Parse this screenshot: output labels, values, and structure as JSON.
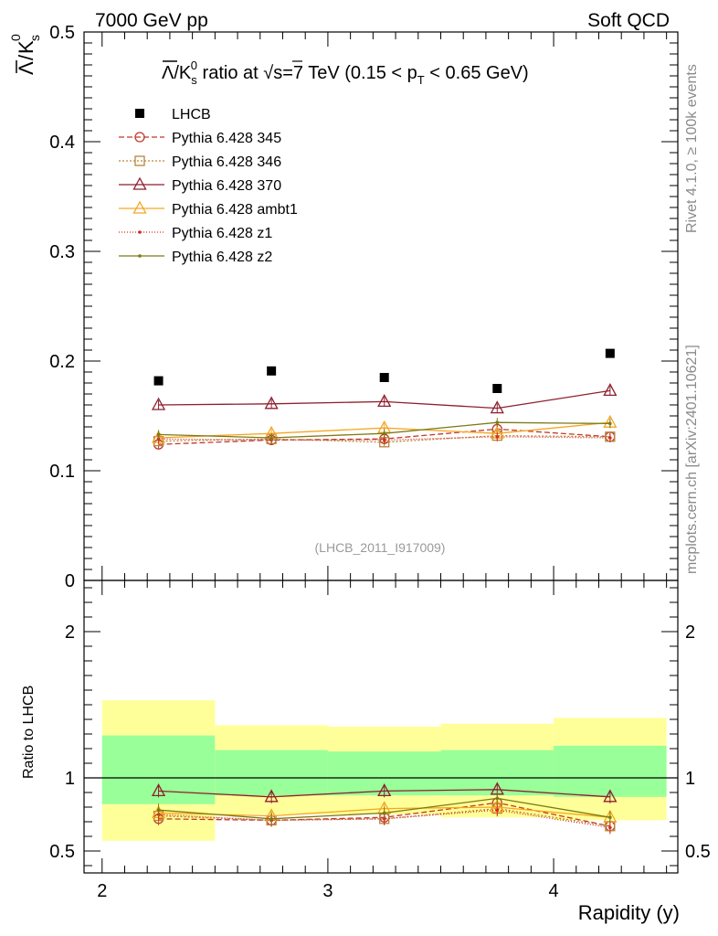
{
  "header": {
    "left": "7000 GeV pp",
    "right": "Soft QCD"
  },
  "side": {
    "rivet": "Rivet 4.1.0, ≥ 100k events",
    "mcplots": "mcplots.cern.ch [arXiv:2401.10621]"
  },
  "chart_data": {
    "type": "scatter",
    "title": {
      "lead": "/K",
      "mid": " ratio at ",
      "root": "s",
      "energy": "=7 TeV (0.15 < p",
      "sub": "T",
      "tail": " < 0.65 GeV)"
    },
    "ylabel_main": {
      "num": "Λ",
      "den": "K",
      "sub": "s",
      "sup": "0"
    },
    "ylabel_ratio": "Ratio to LHCB",
    "xlabel": "Rapidity (y)",
    "watermark": "(LHCB_2011_I917009)",
    "xlim": [
      1.92,
      4.55
    ],
    "ylim_main": [
      0.0,
      0.5
    ],
    "ylim_ratio": [
      0.35,
      2.35
    ],
    "x_ticks": [
      "2",
      "3",
      "4"
    ],
    "y_ticks_main": [
      "0",
      "0.1",
      "0.2",
      "0.3",
      "0.4",
      "0.5"
    ],
    "y_ticks_ratio": [
      "0.5",
      "1",
      "2"
    ],
    "x_bin_edges": [
      2.0,
      2.5,
      3.0,
      3.5,
      4.0,
      4.5
    ],
    "x": [
      2.25,
      2.75,
      3.25,
      3.75,
      4.25
    ],
    "data": {
      "name": "LHCB",
      "values": [
        0.182,
        0.191,
        0.185,
        0.175,
        0.207
      ],
      "color": "#000000"
    },
    "band_inner": [
      [
        0.82,
        1.29
      ],
      [
        0.88,
        1.19
      ],
      [
        0.88,
        1.18
      ],
      [
        0.88,
        1.19
      ],
      [
        0.87,
        1.22
      ]
    ],
    "band_outer": [
      [
        0.57,
        1.53
      ],
      [
        0.75,
        1.36
      ],
      [
        0.75,
        1.35
      ],
      [
        0.73,
        1.37
      ],
      [
        0.71,
        1.41
      ]
    ],
    "series": [
      {
        "name": "Pythia 6.428 345",
        "values": [
          0.124,
          0.128,
          0.129,
          0.138,
          0.131
        ],
        "ratio": [
          0.72,
          0.71,
          0.73,
          0.83,
          0.67
        ],
        "color": "#c0392b",
        "marker": "circle",
        "dash": "6,3"
      },
      {
        "name": "Pythia 6.428 346",
        "values": [
          0.127,
          0.129,
          0.126,
          0.132,
          0.131
        ],
        "ratio": [
          0.74,
          0.71,
          0.72,
          0.79,
          0.67
        ],
        "color": "#b8863b",
        "marker": "square",
        "dash": "2,2"
      },
      {
        "name": "Pythia 6.428 370",
        "values": [
          0.16,
          0.161,
          0.163,
          0.157,
          0.173
        ],
        "ratio": [
          0.91,
          0.87,
          0.91,
          0.92,
          0.87
        ],
        "color": "#8e1f2e",
        "marker": "triangle",
        "dash": ""
      },
      {
        "name": "Pythia 6.428 ambt1",
        "values": [
          0.13,
          0.134,
          0.139,
          0.134,
          0.144
        ],
        "ratio": [
          0.76,
          0.74,
          0.79,
          0.8,
          0.73
        ],
        "color": "#f5a623",
        "marker": "triangle",
        "dash": ""
      },
      {
        "name": "Pythia 6.428 z1",
        "values": [
          0.129,
          0.128,
          0.128,
          0.131,
          0.13
        ],
        "ratio": [
          0.75,
          0.71,
          0.72,
          0.78,
          0.66
        ],
        "color": "#d62d20",
        "marker": "dot",
        "dash": "1,2"
      },
      {
        "name": "Pythia 6.428 z2",
        "values": [
          0.133,
          0.13,
          0.134,
          0.144,
          0.143
        ],
        "ratio": [
          0.78,
          0.72,
          0.76,
          0.86,
          0.73
        ],
        "color": "#7c7a14",
        "marker": "dot",
        "dash": ""
      }
    ],
    "colors": {
      "band_inner": "#99ff99",
      "band_outer": "#ffff99"
    }
  }
}
